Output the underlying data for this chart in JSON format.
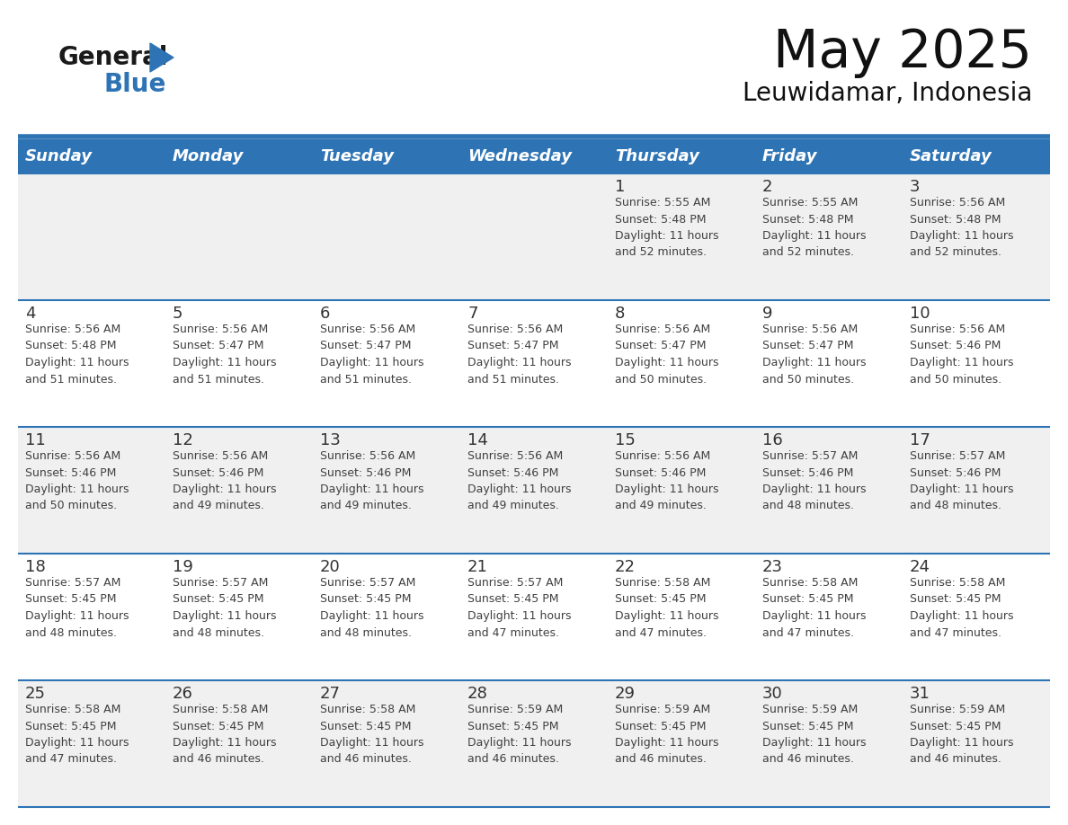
{
  "title": "May 2025",
  "subtitle": "Leuwidamar, Indonesia",
  "header_bg": "#2E74B5",
  "header_text_color": "#FFFFFF",
  "days_of_week": [
    "Sunday",
    "Monday",
    "Tuesday",
    "Wednesday",
    "Thursday",
    "Friday",
    "Saturday"
  ],
  "row_bg_even": "#F0F0F0",
  "row_bg_odd": "#FFFFFF",
  "cell_text_color": "#404040",
  "day_number_color": "#333333",
  "separator_color": "#2E74B5",
  "logo_color1": "#1a1a1a",
  "logo_color2": "#2E74B5",
  "calendar_data": [
    [
      null,
      null,
      null,
      null,
      {
        "day": 1,
        "sunrise": "5:55 AM",
        "sunset": "5:48 PM",
        "daylight": "11 hours\nand 52 minutes."
      },
      {
        "day": 2,
        "sunrise": "5:55 AM",
        "sunset": "5:48 PM",
        "daylight": "11 hours\nand 52 minutes."
      },
      {
        "day": 3,
        "sunrise": "5:56 AM",
        "sunset": "5:48 PM",
        "daylight": "11 hours\nand 52 minutes."
      }
    ],
    [
      {
        "day": 4,
        "sunrise": "5:56 AM",
        "sunset": "5:48 PM",
        "daylight": "11 hours\nand 51 minutes."
      },
      {
        "day": 5,
        "sunrise": "5:56 AM",
        "sunset": "5:47 PM",
        "daylight": "11 hours\nand 51 minutes."
      },
      {
        "day": 6,
        "sunrise": "5:56 AM",
        "sunset": "5:47 PM",
        "daylight": "11 hours\nand 51 minutes."
      },
      {
        "day": 7,
        "sunrise": "5:56 AM",
        "sunset": "5:47 PM",
        "daylight": "11 hours\nand 51 minutes."
      },
      {
        "day": 8,
        "sunrise": "5:56 AM",
        "sunset": "5:47 PM",
        "daylight": "11 hours\nand 50 minutes."
      },
      {
        "day": 9,
        "sunrise": "5:56 AM",
        "sunset": "5:47 PM",
        "daylight": "11 hours\nand 50 minutes."
      },
      {
        "day": 10,
        "sunrise": "5:56 AM",
        "sunset": "5:46 PM",
        "daylight": "11 hours\nand 50 minutes."
      }
    ],
    [
      {
        "day": 11,
        "sunrise": "5:56 AM",
        "sunset": "5:46 PM",
        "daylight": "11 hours\nand 50 minutes."
      },
      {
        "day": 12,
        "sunrise": "5:56 AM",
        "sunset": "5:46 PM",
        "daylight": "11 hours\nand 49 minutes."
      },
      {
        "day": 13,
        "sunrise": "5:56 AM",
        "sunset": "5:46 PM",
        "daylight": "11 hours\nand 49 minutes."
      },
      {
        "day": 14,
        "sunrise": "5:56 AM",
        "sunset": "5:46 PM",
        "daylight": "11 hours\nand 49 minutes."
      },
      {
        "day": 15,
        "sunrise": "5:56 AM",
        "sunset": "5:46 PM",
        "daylight": "11 hours\nand 49 minutes."
      },
      {
        "day": 16,
        "sunrise": "5:57 AM",
        "sunset": "5:46 PM",
        "daylight": "11 hours\nand 48 minutes."
      },
      {
        "day": 17,
        "sunrise": "5:57 AM",
        "sunset": "5:46 PM",
        "daylight": "11 hours\nand 48 minutes."
      }
    ],
    [
      {
        "day": 18,
        "sunrise": "5:57 AM",
        "sunset": "5:45 PM",
        "daylight": "11 hours\nand 48 minutes."
      },
      {
        "day": 19,
        "sunrise": "5:57 AM",
        "sunset": "5:45 PM",
        "daylight": "11 hours\nand 48 minutes."
      },
      {
        "day": 20,
        "sunrise": "5:57 AM",
        "sunset": "5:45 PM",
        "daylight": "11 hours\nand 48 minutes."
      },
      {
        "day": 21,
        "sunrise": "5:57 AM",
        "sunset": "5:45 PM",
        "daylight": "11 hours\nand 47 minutes."
      },
      {
        "day": 22,
        "sunrise": "5:58 AM",
        "sunset": "5:45 PM",
        "daylight": "11 hours\nand 47 minutes."
      },
      {
        "day": 23,
        "sunrise": "5:58 AM",
        "sunset": "5:45 PM",
        "daylight": "11 hours\nand 47 minutes."
      },
      {
        "day": 24,
        "sunrise": "5:58 AM",
        "sunset": "5:45 PM",
        "daylight": "11 hours\nand 47 minutes."
      }
    ],
    [
      {
        "day": 25,
        "sunrise": "5:58 AM",
        "sunset": "5:45 PM",
        "daylight": "11 hours\nand 47 minutes."
      },
      {
        "day": 26,
        "sunrise": "5:58 AM",
        "sunset": "5:45 PM",
        "daylight": "11 hours\nand 46 minutes."
      },
      {
        "day": 27,
        "sunrise": "5:58 AM",
        "sunset": "5:45 PM",
        "daylight": "11 hours\nand 46 minutes."
      },
      {
        "day": 28,
        "sunrise": "5:59 AM",
        "sunset": "5:45 PM",
        "daylight": "11 hours\nand 46 minutes."
      },
      {
        "day": 29,
        "sunrise": "5:59 AM",
        "sunset": "5:45 PM",
        "daylight": "11 hours\nand 46 minutes."
      },
      {
        "day": 30,
        "sunrise": "5:59 AM",
        "sunset": "5:45 PM",
        "daylight": "11 hours\nand 46 minutes."
      },
      {
        "day": 31,
        "sunrise": "5:59 AM",
        "sunset": "5:45 PM",
        "daylight": "11 hours\nand 46 minutes."
      }
    ]
  ]
}
